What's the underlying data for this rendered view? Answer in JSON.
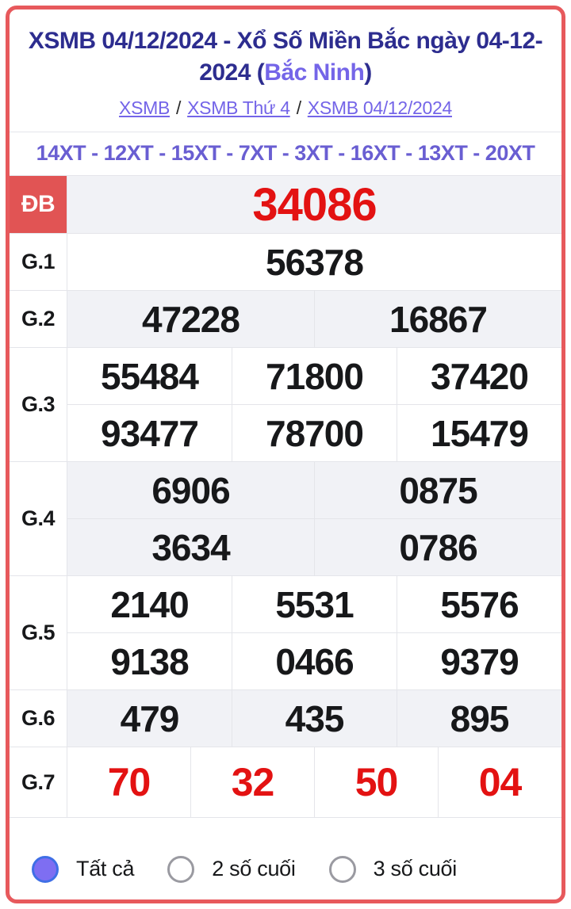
{
  "colors": {
    "card_border": "#e7595c",
    "title_navy": "#2d2d8f",
    "link_purple": "#7465e8",
    "ticket_purple": "#695ed2",
    "db_badge_bg": "#e15454",
    "number_red": "#e31212",
    "number_black": "#17181a",
    "row_gray": "#f1f2f6",
    "grid_line": "#e4e5ea",
    "radio_selected_fill": "#7e6ef2",
    "radio_selected_ring": "#3f6fe6"
  },
  "header": {
    "title_prefix": "XSMB 04/12/2024 - Xổ Số Miền Bắc ngày 04-12-2024 (",
    "title_highlight": "Bắc Ninh",
    "title_suffix": ")",
    "breadcrumb": [
      {
        "label": "XSMB"
      },
      {
        "label": "XSMB Thứ 4"
      },
      {
        "label": "XSMB 04/12/2024"
      }
    ],
    "breadcrumb_separator": "/"
  },
  "ticket_line": "14XT - 12XT - 15XT - 7XT - 3XT - 16XT - 13XT - 20XT",
  "results": {
    "rows": [
      {
        "label": "ĐB",
        "style": "special",
        "numbers": [
          [
            "34086"
          ]
        ]
      },
      {
        "label": "G.1",
        "style": "normal",
        "numbers": [
          [
            "56378"
          ]
        ]
      },
      {
        "label": "G.2",
        "style": "normal",
        "numbers": [
          [
            "47228",
            "16867"
          ]
        ]
      },
      {
        "label": "G.3",
        "style": "normal",
        "numbers": [
          [
            "55484",
            "71800",
            "37420"
          ],
          [
            "93477",
            "78700",
            "15479"
          ]
        ]
      },
      {
        "label": "G.4",
        "style": "normal",
        "numbers": [
          [
            "6906",
            "0875"
          ],
          [
            "3634",
            "0786"
          ]
        ]
      },
      {
        "label": "G.5",
        "style": "normal",
        "numbers": [
          [
            "2140",
            "5531",
            "5576"
          ],
          [
            "9138",
            "0466",
            "9379"
          ]
        ]
      },
      {
        "label": "G.6",
        "style": "normal",
        "numbers": [
          [
            "479",
            "435",
            "895"
          ]
        ]
      },
      {
        "label": "G.7",
        "style": "red",
        "numbers": [
          [
            "70",
            "32",
            "50",
            "04"
          ]
        ]
      }
    ]
  },
  "filters": {
    "options": [
      {
        "label": "Tất cả",
        "selected": true
      },
      {
        "label": "2 số cuối",
        "selected": false
      },
      {
        "label": "3 số cuối",
        "selected": false
      }
    ]
  }
}
